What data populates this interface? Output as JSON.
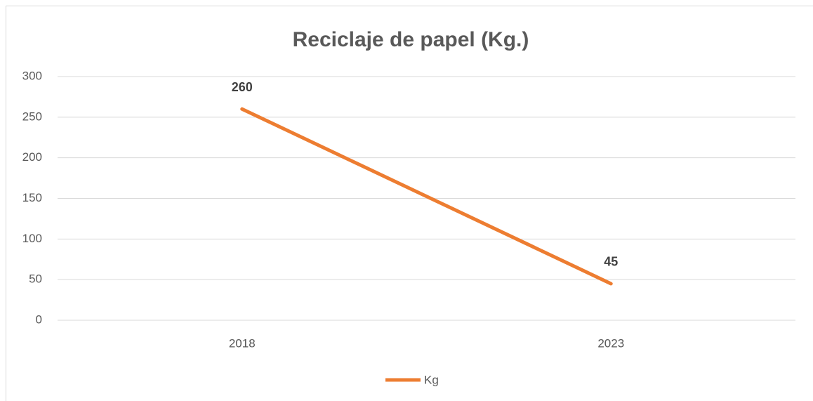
{
  "chart_data": {
    "type": "line",
    "title": "Reciclaje de papel (Kg.)",
    "categories": [
      "2018",
      "2023"
    ],
    "series": [
      {
        "name": "Kg",
        "color": "#ed7d31",
        "values": [
          260,
          45
        ]
      }
    ],
    "ylim": [
      0,
      300
    ],
    "yticks": [
      0,
      50,
      100,
      150,
      200,
      250,
      300
    ],
    "grid": true,
    "legend": "bottom"
  }
}
